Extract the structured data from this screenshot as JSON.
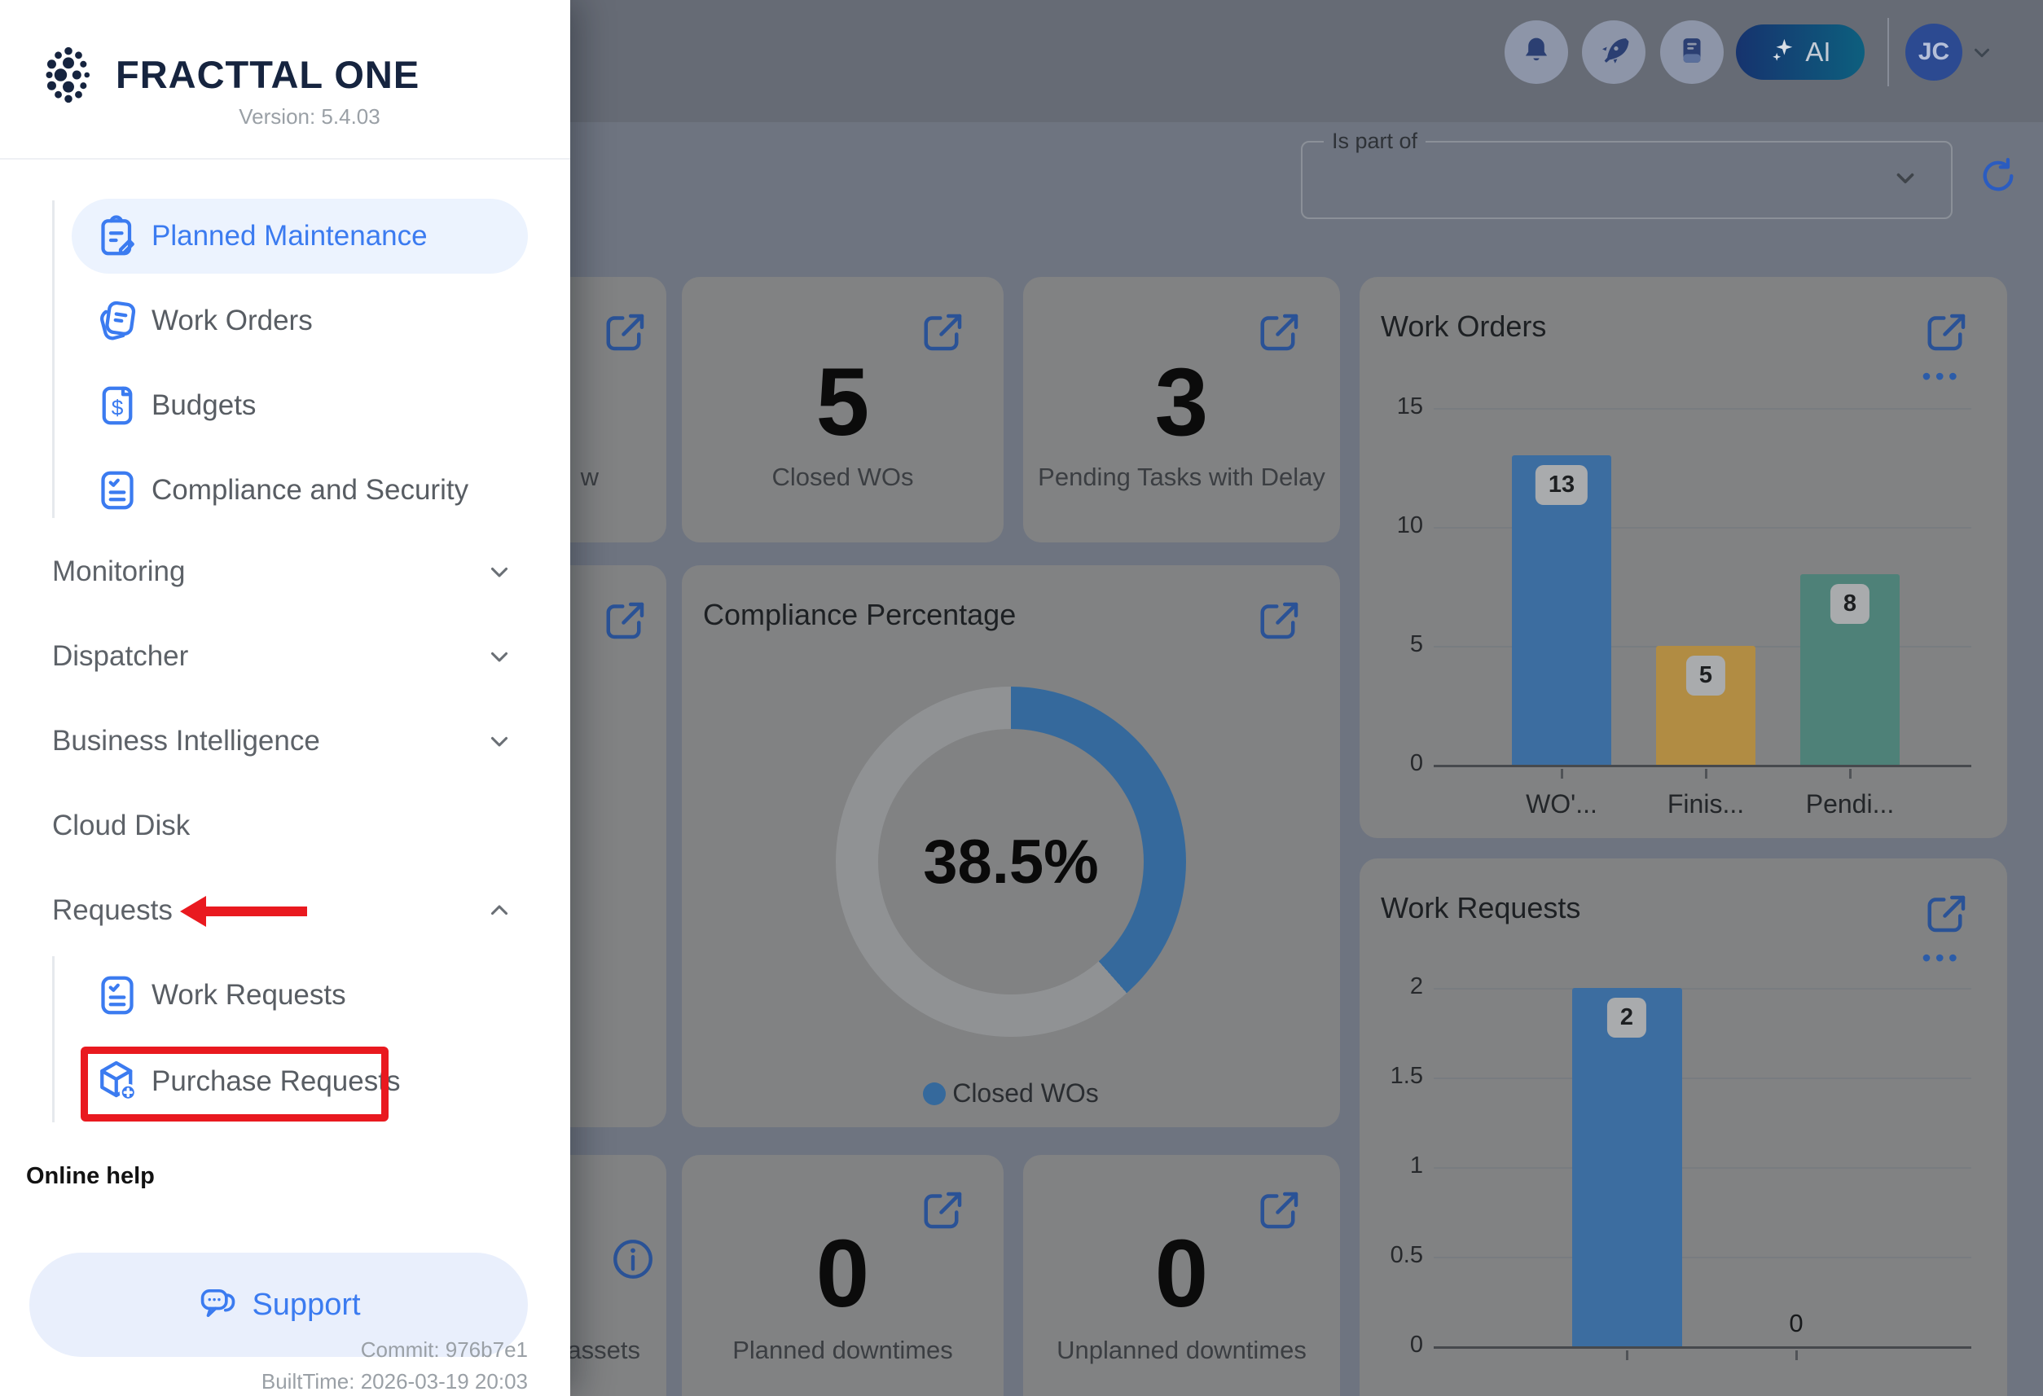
{
  "colors": {
    "accent_blue": "#3b7bf0",
    "brand_navy": "#16243f",
    "annotation_red": "#e9191f",
    "page_bg_dim": "#6e7480",
    "header_bg_dim": "#666b75",
    "card_bg_dim": "#818283",
    "icon_blue_dim": "#2a5296",
    "badge_bg_dim": "#a9abad",
    "refresh_blue": "#2b5cc0",
    "donut_track": "#909294"
  },
  "sidebar": {
    "brand": "FRACTTAL ONE",
    "version": "Version: 5.4.03",
    "items": [
      {
        "label": "Planned Maintenance",
        "active": true
      },
      {
        "label": "Work Orders"
      },
      {
        "label": "Budgets"
      },
      {
        "label": "Compliance and Security"
      }
    ],
    "sections": [
      {
        "label": "Monitoring"
      },
      {
        "label": "Dispatcher"
      },
      {
        "label": "Business Intelligence"
      }
    ],
    "cloud_disk_label": "Cloud Disk",
    "requests_label": "Requests",
    "request_children": [
      {
        "label": "Work Requests"
      },
      {
        "label": "Purchase Requests",
        "annotated": true
      }
    ],
    "online_help_label": "Online help",
    "support_label": "Support",
    "commit": "Commit: 976b7e1",
    "built_time": "BuiltTime: 2026-03-19 20:03"
  },
  "topbar": {
    "ai_label": "AI",
    "avatar_initials": "JC"
  },
  "filter": {
    "label": "Is part of"
  },
  "stat_cards": [
    {
      "value": "5",
      "label": "Closed WOs"
    },
    {
      "value": "3",
      "label": "Pending Tasks with Delay"
    },
    {
      "value": "0",
      "label": "Planned downtimes"
    },
    {
      "value": "0",
      "label": "Unplanned downtimes"
    }
  ],
  "partial_cards": {
    "row1_label": "w",
    "row3_label": "assets"
  },
  "chart_data": [
    {
      "id": "work_orders",
      "type": "bar",
      "title": "Work Orders",
      "categories": [
        "WO'...",
        "Finis...",
        "Pendi..."
      ],
      "values": [
        13,
        5,
        8
      ],
      "colors": [
        "#3c6da0",
        "#b18c43",
        "#4e8178"
      ],
      "ylim": [
        0,
        15
      ],
      "yticks": [
        0,
        5,
        10,
        15
      ],
      "grid": true,
      "value_badges": true,
      "legend_position": "none"
    },
    {
      "id": "compliance",
      "type": "donut",
      "title": "Compliance Percentage",
      "value_pct": 38.5,
      "value_label": "38.5%",
      "series_color": "#35699c",
      "legend": [
        {
          "label": "Closed WOs",
          "color": "#35699c"
        }
      ],
      "legend_position": "bottom"
    },
    {
      "id": "work_requests",
      "type": "bar",
      "title": "Work Requests",
      "categories": [
        "",
        ""
      ],
      "values": [
        2,
        0
      ],
      "colors": [
        "#3c6da0",
        "#3c6da0"
      ],
      "ylim": [
        0,
        2
      ],
      "yticks": [
        0,
        0.5,
        1,
        1.5,
        2
      ],
      "grid": true,
      "value_badges": true,
      "legend_position": "none"
    }
  ]
}
